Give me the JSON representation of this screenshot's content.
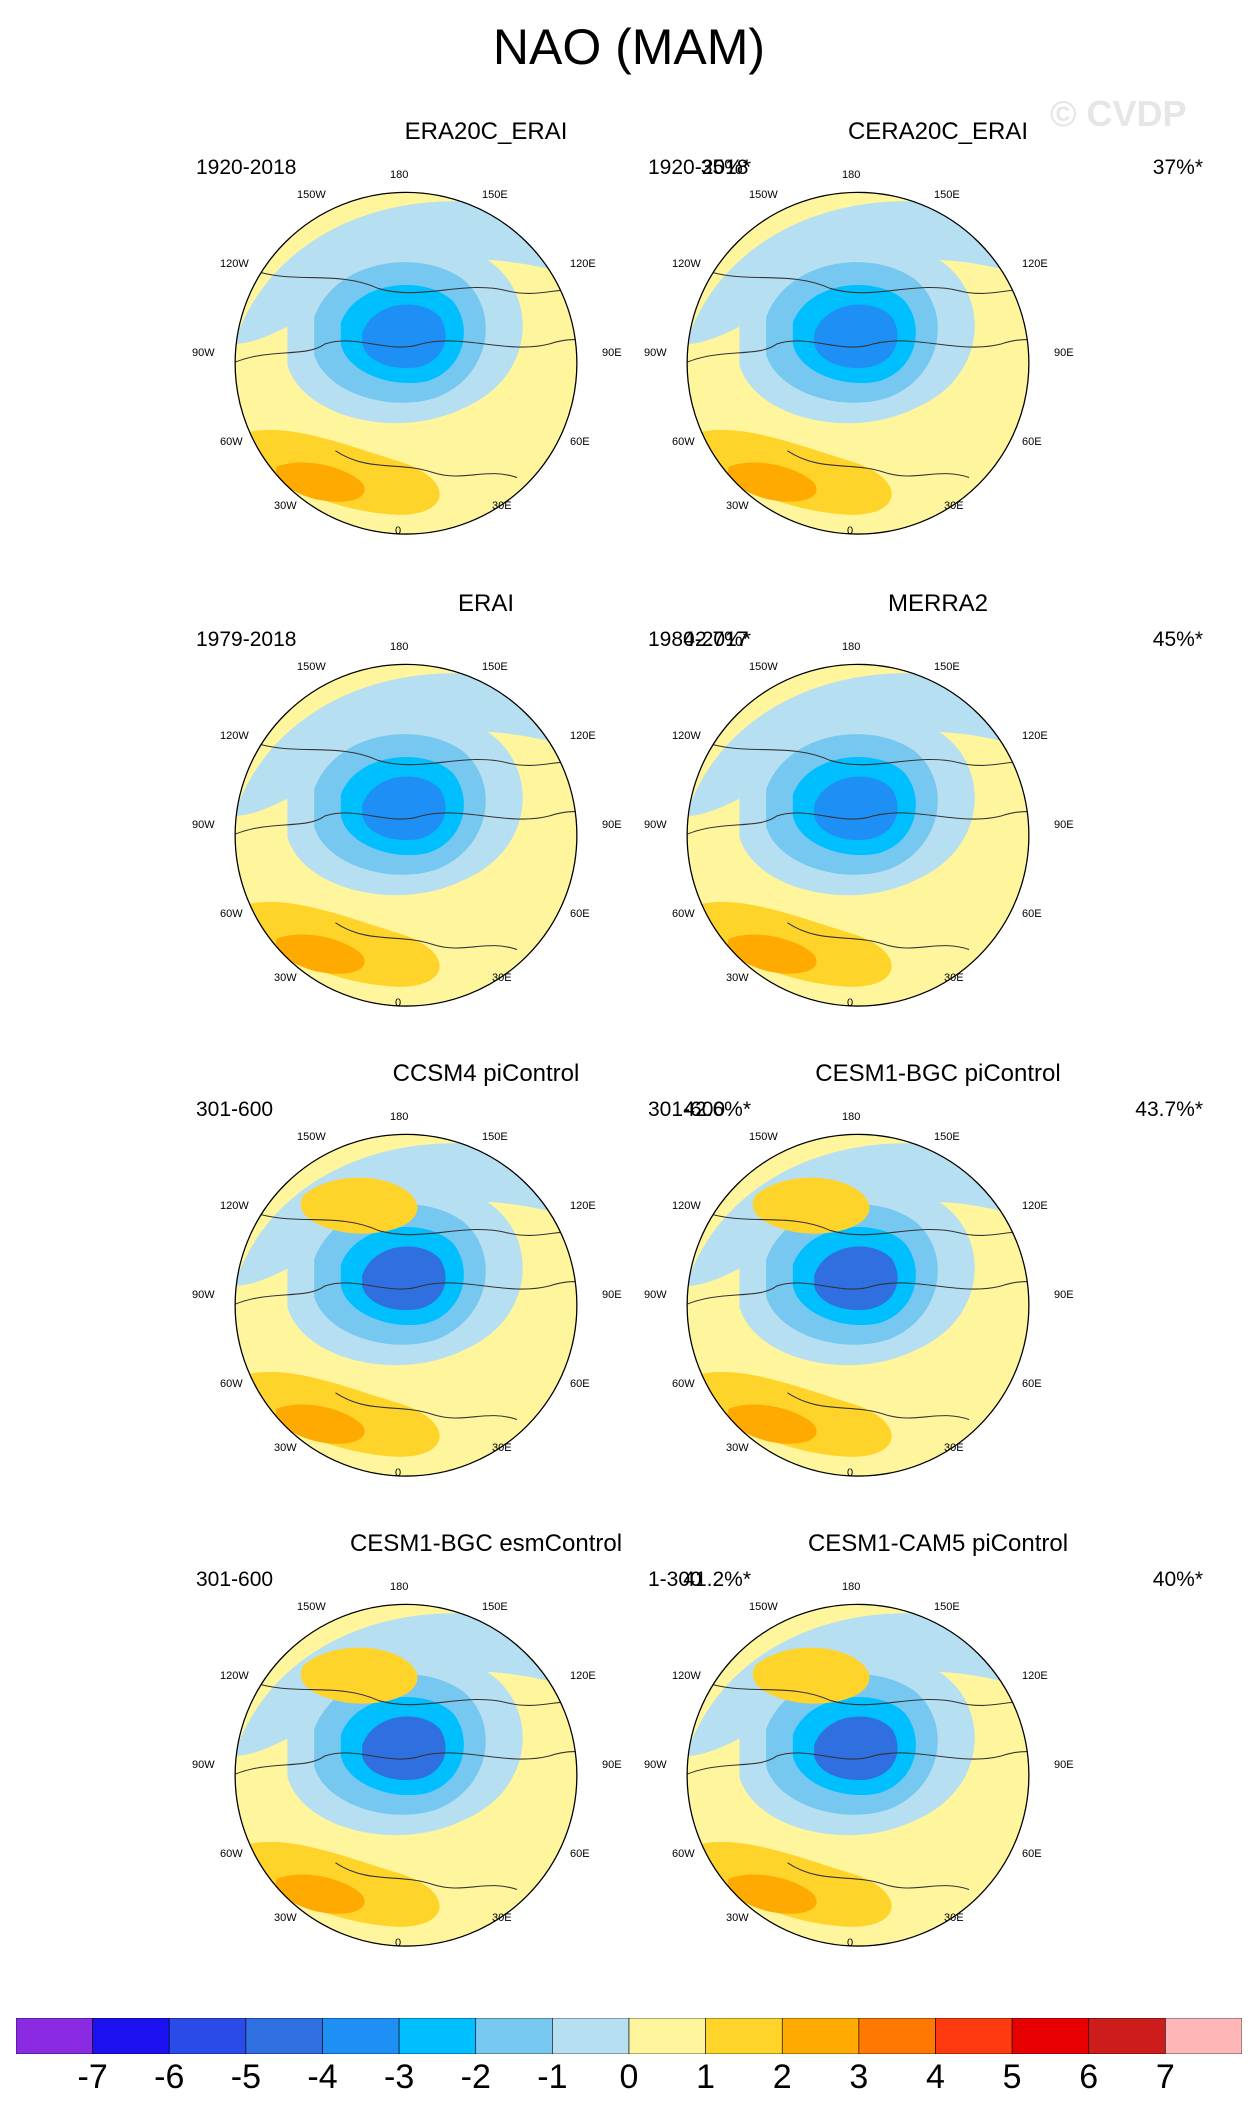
{
  "title": "NAO (MAM)",
  "watermark": "© CVDP",
  "panels": [
    {
      "title": "ERA20C_ERAI",
      "period": "1920-2018",
      "pct": "35%*"
    },
    {
      "title": "CERA20C_ERAI",
      "period": "1920-2018",
      "pct": "37%*"
    },
    {
      "title": "ERAI",
      "period": "1979-2018",
      "pct": "42.7%*"
    },
    {
      "title": "MERRA2",
      "period": "1980-2017",
      "pct": "45%*"
    },
    {
      "title": "CCSM4 piControl",
      "period": "301-600",
      "pct": "42.6%*"
    },
    {
      "title": "CESM1-BGC piControl",
      "period": "301-600",
      "pct": "43.7%*"
    },
    {
      "title": "CESM1-BGC esmControl",
      "period": "301-600",
      "pct": "41.2%*"
    },
    {
      "title": "CESM1-CAM5 piControl",
      "period": "1-300",
      "pct": "40%*"
    }
  ],
  "lon_labels": {
    "l180": "180",
    "l150w": "150W",
    "l150e": "150E",
    "l120w": "120W",
    "l120e": "120E",
    "l90w": "90W",
    "l90e": "90E",
    "l60w": "60W",
    "l60e": "60E",
    "l30w": "30W",
    "l30e": "30E",
    "l0": "0"
  },
  "colorbar": {
    "labels": [
      "-7",
      "-6",
      "-5",
      "-4",
      "-3",
      "-2",
      "-1",
      "0",
      "1",
      "2",
      "3",
      "4",
      "5",
      "6",
      "7"
    ],
    "colors": [
      "#8a2be2",
      "#1a10f0",
      "#2b4be8",
      "#2f6fe0",
      "#1e90f5",
      "#00bfff",
      "#76c8f0",
      "#b7dff2",
      "#fff59c",
      "#ffd42a",
      "#ffaa00",
      "#ff7800",
      "#ff3a10",
      "#e60000",
      "#cc1c1c",
      "#ffb6b6"
    ]
  }
}
